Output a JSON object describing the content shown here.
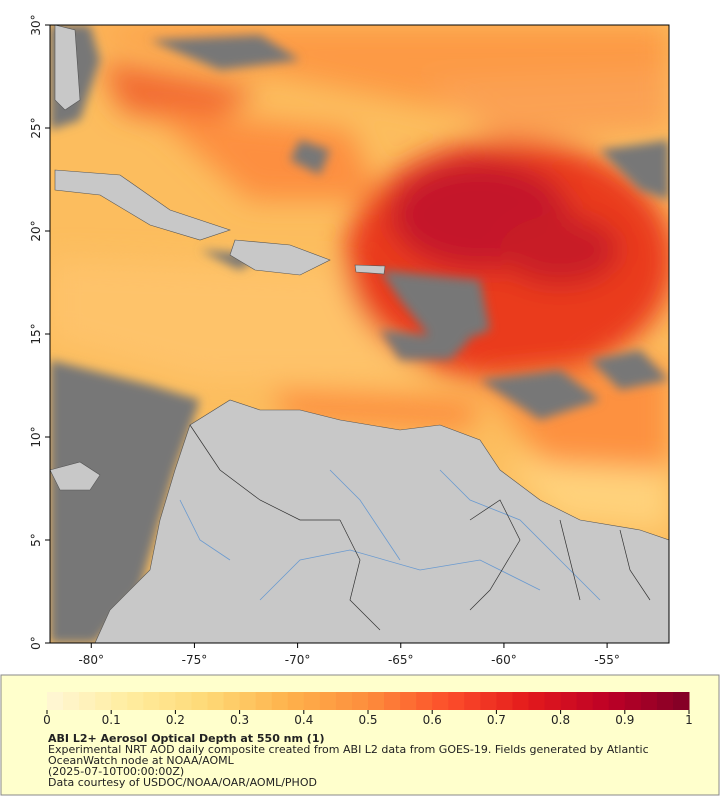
{
  "map": {
    "xlim": [
      -82,
      -52
    ],
    "ylim": [
      0,
      30
    ],
    "xticks": [
      {
        "value": -80,
        "label": "-80°"
      },
      {
        "value": -75,
        "label": "-75°"
      },
      {
        "value": -70,
        "label": "-70°"
      },
      {
        "value": -65,
        "label": "-65°"
      },
      {
        "value": -60,
        "label": "-60°"
      },
      {
        "value": -55,
        "label": "-55°"
      }
    ],
    "yticks": [
      {
        "value": 0,
        "label": "0°"
      },
      {
        "value": 5,
        "label": "5°"
      },
      {
        "value": 10,
        "label": "10°"
      },
      {
        "value": 15,
        "label": "15°"
      },
      {
        "value": 20,
        "label": "20°"
      },
      {
        "value": 25,
        "label": "25°"
      },
      {
        "value": 30,
        "label": "30°"
      }
    ]
  },
  "colorbar": {
    "range": [
      0,
      1
    ],
    "ticks": [
      0,
      0.1,
      0.2,
      0.3,
      0.4,
      0.5,
      0.6,
      0.7,
      0.8,
      0.9,
      1
    ],
    "colors": [
      "#fff7d6",
      "#ffeda0",
      "#fed976",
      "#feb24c",
      "#fd8d3c",
      "#fc4e2a",
      "#e31a1c",
      "#bd0026",
      "#800026"
    ]
  },
  "caption": {
    "title": "ABI L2+ Aerosol Optical Depth at 550 nm (1)",
    "lines": [
      "Experimental NRT AOD daily composite created from ABI L2 data from GOES-19. Fields generated by Atlantic",
      "OceanWatch node at NOAA/AOML",
      "(2025-07-10T00:00:00Z)",
      "Data courtesy of USDOC/NOAA/OAR/AOML/PHOD"
    ]
  }
}
